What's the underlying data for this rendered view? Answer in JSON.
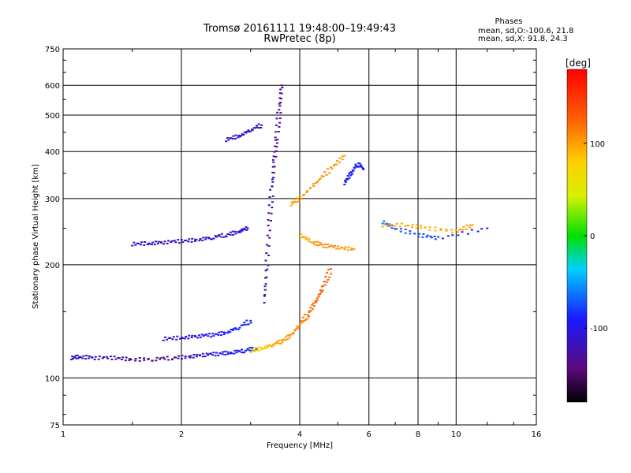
{
  "chart_data": {
    "type": "scatter",
    "title": "Tromsø 20161111 19:48:00–19:49:43",
    "subtitle": "RwPretec (8p)",
    "xlabel": "Frequency [MHz]",
    "ylabel": "Stationary phase Virtual Height [km]",
    "x_scale": "log",
    "y_scale": "log",
    "xlim": [
      1,
      16
    ],
    "ylim": [
      75,
      750
    ],
    "x_ticks": [
      1,
      2,
      4,
      6,
      8,
      10,
      16
    ],
    "y_ticks": [
      75,
      100,
      200,
      300,
      400,
      500,
      600,
      750
    ],
    "grid": true,
    "phase_box": {
      "title": "Phases",
      "line1": "mean, sd,O:-100.6, 21.8",
      "line2": "mean, sd,X:  91.8, 24.3"
    },
    "colorbar": {
      "label": "[deg]",
      "range": [
        -180,
        180
      ],
      "ticks": [
        100,
        0,
        -100
      ],
      "colormap": "rainbow (black → purple → blue → cyan → green → yellow → orange → red)"
    },
    "series": [
      {
        "mode": "O",
        "phase_mean": -100.6,
        "segments": [
          {
            "points": [
              [
                1.05,
                113
              ],
              [
                1.1,
                114
              ],
              [
                1.2,
                113
              ],
              [
                1.35,
                113
              ],
              [
                1.5,
                112
              ],
              [
                1.7,
                112
              ],
              [
                1.9,
                113
              ],
              [
                2.1,
                114
              ],
              [
                2.3,
                115
              ],
              [
                2.5,
                116
              ],
              [
                2.7,
                117
              ],
              [
                2.9,
                118
              ],
              [
                3.1,
                120
              ]
            ],
            "phase": [
              -110,
              -115,
              -118,
              -125,
              -135,
              -140,
              -135,
              -120,
              -110,
              -100,
              -95,
              -90,
              -85
            ]
          },
          {
            "points": [
              [
                1.5,
                227
              ],
              [
                1.65,
                228
              ],
              [
                1.8,
                229
              ],
              [
                2.0,
                231
              ],
              [
                2.2,
                233
              ],
              [
                2.4,
                236
              ],
              [
                2.6,
                240
              ],
              [
                2.8,
                245
              ],
              [
                2.95,
                250
              ]
            ],
            "phase": [
              -110,
              -115,
              -120,
              -118,
              -115,
              -112,
              -110,
              -105,
              -100
            ]
          },
          {
            "points": [
              [
                1.8,
                127
              ],
              [
                2.0,
                128
              ],
              [
                2.2,
                129
              ],
              [
                2.4,
                130
              ],
              [
                2.6,
                132
              ],
              [
                2.8,
                136
              ],
              [
                3.0,
                142
              ]
            ],
            "phase": [
              -105,
              -105,
              -100,
              -95,
              -90,
              -85,
              -85
            ]
          },
          {
            "points": [
              [
                3.25,
                160
              ],
              [
                3.3,
                200
              ],
              [
                3.35,
                260
              ],
              [
                3.4,
                320
              ],
              [
                3.45,
                380
              ],
              [
                3.5,
                440
              ],
              [
                3.55,
                520
              ],
              [
                3.6,
                600
              ]
            ],
            "phase": [
              -120,
              -125,
              -130,
              -120,
              -125,
              -130,
              -125,
              -135
            ]
          },
          {
            "points": [
              [
                2.6,
                430
              ],
              [
                2.8,
                440
              ],
              [
                3.0,
                455
              ],
              [
                3.2,
                470
              ]
            ],
            "phase": [
              -110,
              -105,
              -115,
              -120
            ]
          },
          {
            "points": [
              [
                5.2,
                330
              ],
              [
                5.4,
                350
              ],
              [
                5.6,
                370
              ],
              [
                5.8,
                360
              ]
            ],
            "phase": [
              -95,
              -90,
              -85,
              -90
            ]
          },
          {
            "points": [
              [
                6.5,
                260
              ],
              [
                7.0,
                250
              ],
              [
                8.0,
                240
              ],
              [
                9.0,
                235
              ],
              [
                12.0,
                250
              ]
            ],
            "phase": [
              -60,
              -70,
              -70,
              -80,
              -90
            ]
          }
        ]
      },
      {
        "mode": "X",
        "phase_mean": 91.8,
        "segments": [
          {
            "points": [
              [
                3.0,
                118
              ],
              [
                3.2,
                120
              ],
              [
                3.4,
                122
              ],
              [
                3.6,
                125
              ],
              [
                3.8,
                130
              ],
              [
                4.0,
                138
              ],
              [
                4.2,
                148
              ],
              [
                4.4,
                160
              ],
              [
                4.6,
                175
              ],
              [
                4.8,
                195
              ]
            ],
            "phase": [
              60,
              75,
              90,
              100,
              105,
              110,
              120,
              125,
              130,
              120
            ]
          },
          {
            "points": [
              [
                4.0,
                240
              ],
              [
                4.3,
                230
              ],
              [
                4.6,
                225
              ],
              [
                5.0,
                222
              ],
              [
                5.5,
                220
              ]
            ],
            "phase": [
              90,
              100,
              110,
              105,
              100
            ]
          },
          {
            "points": [
              [
                3.8,
                290
              ],
              [
                4.0,
                300
              ],
              [
                4.4,
                330
              ],
              [
                4.8,
                360
              ],
              [
                5.2,
                390
              ]
            ],
            "phase": [
              95,
              100,
              110,
              105,
              100
            ]
          },
          {
            "points": [
              [
                6.5,
                255
              ],
              [
                7.5,
                255
              ],
              [
                8.5,
                250
              ],
              [
                10,
                245
              ],
              [
                11,
                255
              ]
            ],
            "phase": [
              100,
              95,
              90,
              95,
              100
            ]
          }
        ]
      }
    ]
  }
}
